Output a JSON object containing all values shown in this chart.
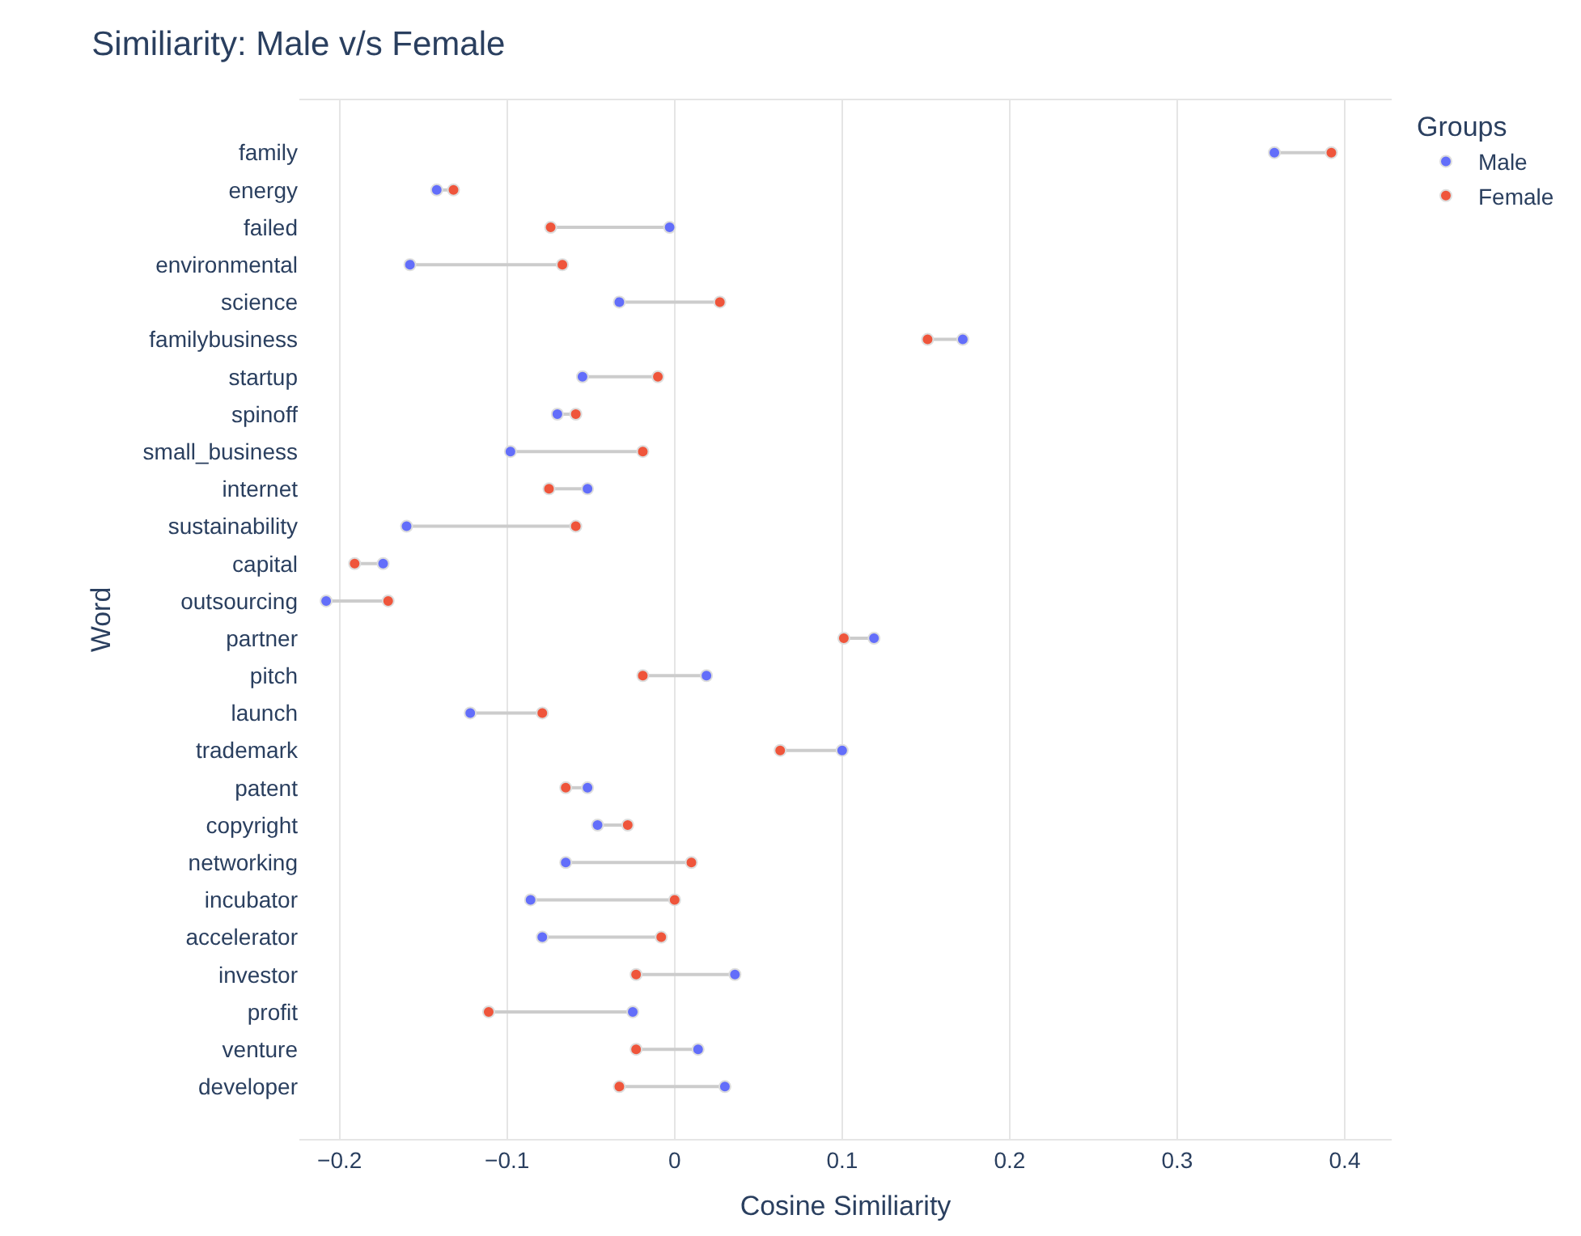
{
  "chart_data": {
    "type": "scatter",
    "orientation": "horizontal",
    "title": "Similiarity: Male v/s Female",
    "xlabel": "Cosine Similiarity",
    "ylabel": "Word",
    "legend_title": "Groups",
    "categories": [
      "family",
      "energy",
      "failed",
      "environmental",
      "science",
      "familybusiness",
      "startup",
      "spinoff",
      "small_business",
      "internet",
      "sustainability",
      "capital",
      "outsourcing",
      "partner",
      "pitch",
      "launch",
      "trademark",
      "patent",
      "copyright",
      "networking",
      "incubator",
      "accelerator",
      "investor",
      "profit",
      "venture",
      "developer"
    ],
    "series": [
      {
        "name": "Male",
        "color": "#636efa",
        "values": [
          0.358,
          -0.142,
          -0.003,
          -0.158,
          -0.033,
          0.172,
          -0.055,
          -0.07,
          -0.098,
          -0.052,
          -0.16,
          -0.174,
          -0.208,
          0.119,
          0.019,
          -0.122,
          0.1,
          -0.052,
          -0.046,
          -0.065,
          -0.086,
          -0.079,
          0.036,
          -0.025,
          0.014,
          0.03
        ]
      },
      {
        "name": "Female",
        "color": "#ef553b",
        "values": [
          0.392,
          -0.132,
          -0.074,
          -0.067,
          0.027,
          0.151,
          -0.01,
          -0.059,
          -0.019,
          -0.075,
          -0.059,
          -0.191,
          -0.171,
          0.101,
          -0.019,
          -0.079,
          0.063,
          -0.065,
          -0.028,
          0.01,
          0.0,
          -0.008,
          -0.023,
          -0.111,
          -0.023,
          -0.033
        ]
      }
    ],
    "xlim": [
      -0.224,
      0.428
    ],
    "xticks": [
      {
        "value": -0.2,
        "label": "−0.2"
      },
      {
        "value": -0.1,
        "label": "−0.1"
      },
      0,
      0.1,
      0.2,
      0.3,
      0.4
    ],
    "grid": "x",
    "legend": "top right",
    "marker": "circle"
  }
}
